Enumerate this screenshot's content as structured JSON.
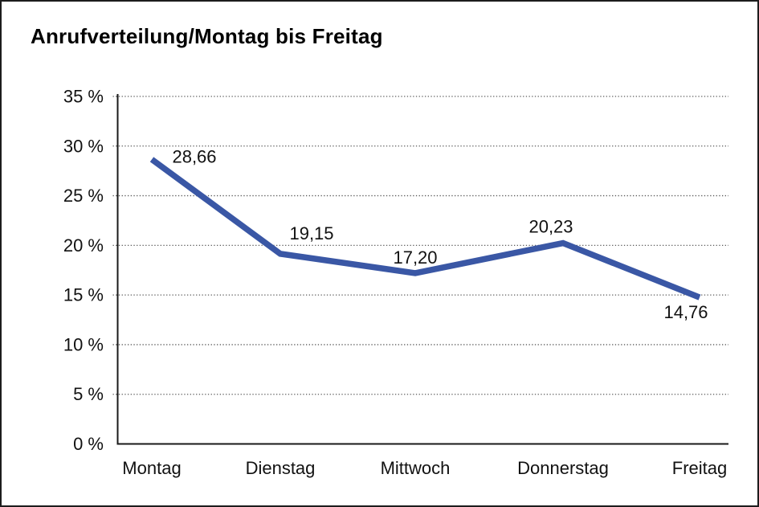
{
  "page": {
    "title": "Anrufverteilung/Montag bis Freitag"
  },
  "chart_data": {
    "type": "line",
    "title": "Anrufverteilung/Montag bis Freitag",
    "categories": [
      "Montag",
      "Dienstag",
      "Mittwoch",
      "Donnerstag",
      "Freitag"
    ],
    "values": [
      28.66,
      19.15,
      17.2,
      20.23,
      14.76
    ],
    "value_labels": [
      "28,66",
      "19,15",
      "17,20",
      "20,23",
      "14,76"
    ],
    "xlabel": "",
    "ylabel": "",
    "ylim": [
      0,
      35
    ],
    "y_tick_step": 5,
    "y_tick_labels": [
      "0 %",
      "5 %",
      "10 %",
      "15 %",
      "20 %",
      "25 %",
      "30 %",
      "35 %"
    ],
    "grid": "dotted-horizontal",
    "legend_position": "none",
    "line_color": "#3a57a5",
    "axis_color": "#1a1a1a",
    "grid_color": "#5a5a5a",
    "text_color": "#111111"
  }
}
